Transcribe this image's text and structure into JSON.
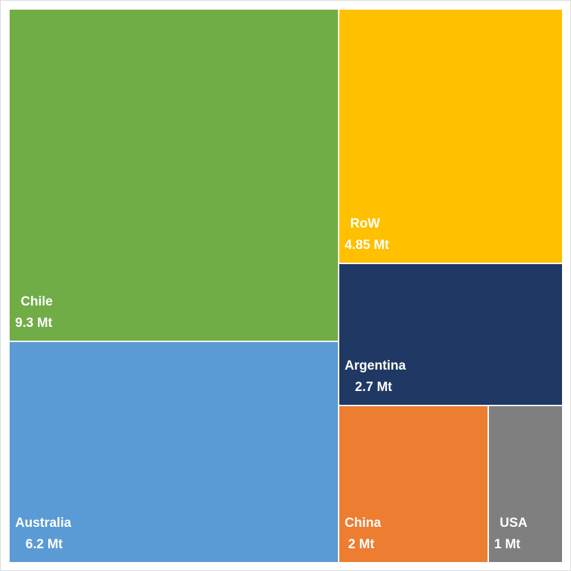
{
  "chart_data": {
    "type": "treemap",
    "unit": "Mt",
    "items": [
      {
        "label": "Chile",
        "value": 9.3,
        "value_label": "9.3 Mt",
        "color": "#70AD47"
      },
      {
        "label": "Australia",
        "value": 6.2,
        "value_label": "6.2 Mt",
        "color": "#5B9BD5"
      },
      {
        "label": "RoW",
        "value": 4.85,
        "value_label": "4.85 Mt",
        "color": "#FFC000"
      },
      {
        "label": "Argentina",
        "value": 2.7,
        "value_label": "2.7 Mt",
        "color": "#203864"
      },
      {
        "label": "China",
        "value": 2,
        "value_label": "2 Mt",
        "color": "#ED7D31"
      },
      {
        "label": "USA",
        "value": 1,
        "value_label": "1 Mt",
        "color": "#7F7F7F"
      }
    ]
  }
}
